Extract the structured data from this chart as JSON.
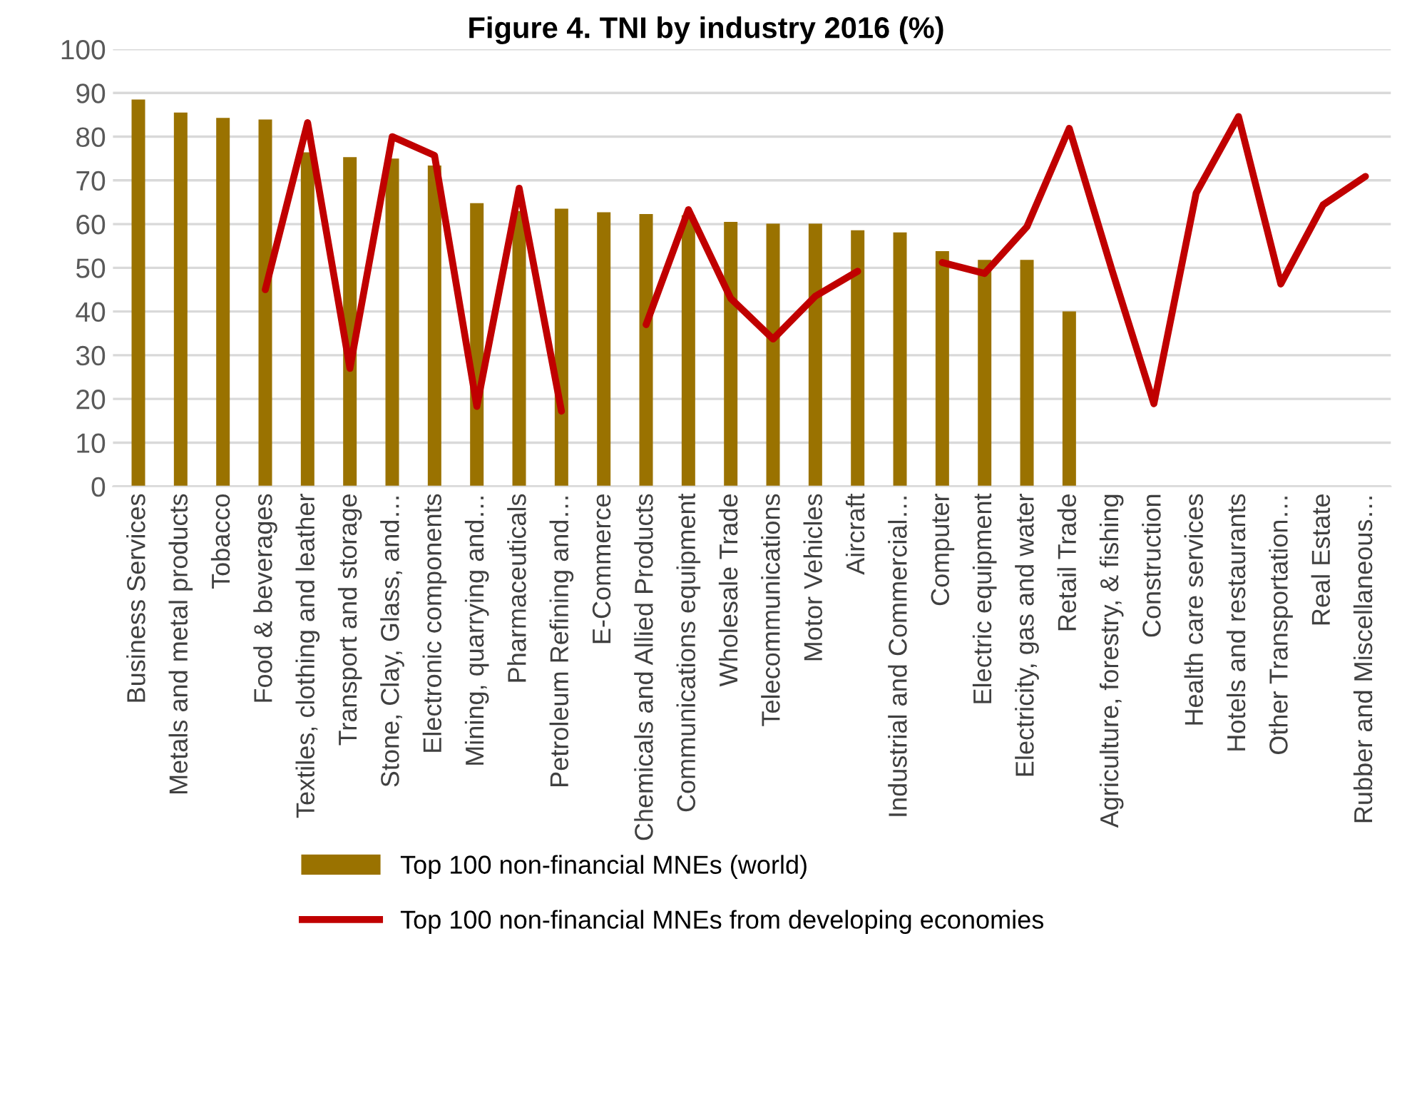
{
  "chart_data": {
    "type": "bar",
    "title": "Figure 4. TNI by industry 2016 (%)",
    "categories": [
      "Business Services",
      "Metals and metal products",
      "Tobacco",
      "Food & beverages",
      "Textiles, clothing and leather",
      "Transport and storage",
      "Stone, Clay, Glass, and…",
      "Electronic components",
      "Mining, quarrying and…",
      "Pharmaceuticals",
      "Petroleum Refining and…",
      "E-Commerce",
      "Chemicals and Allied Products",
      "Communications equipment",
      "Wholesale Trade",
      "Telecommunications",
      "Motor Vehicles",
      "Aircraft",
      "Industrial and Commercial…",
      "Computer",
      "Electric equipment",
      "Electricity, gas and water",
      "Retail Trade",
      "Agriculture, forestry, & fishing",
      "Construction",
      "Health care services",
      "Hotels and restaurants",
      "Other Transportation…",
      "Real Estate",
      "Rubber and Miscellaneous…"
    ],
    "series": [
      {
        "name": "Top 100 non-financial MNEs (world)",
        "color": "#9a7200",
        "values": [
          88.5,
          85.5,
          84.3,
          83.9,
          76.4,
          75.3,
          75,
          73.4,
          64.8,
          63,
          63.5,
          62.7,
          62.3,
          62,
          60.5,
          60.1,
          60.1,
          58.6,
          58.1,
          53.8,
          51.8,
          51.8,
          40,
          null,
          null,
          null,
          null,
          null,
          null,
          null
        ]
      },
      {
        "name": "Top 100 non-financial MNEs from developing economies",
        "type": "line",
        "color": "#c00000",
        "values": [
          null,
          null,
          null,
          45,
          83.2,
          27,
          80,
          75.7,
          18.3,
          68.2,
          17.2,
          null,
          37,
          63.3,
          43,
          33.7,
          43.5,
          49.2,
          null,
          51.2,
          48.7,
          59.4,
          81.9,
          49.8,
          18.9,
          67.1,
          84.6,
          46.3,
          64.4,
          70.9
        ]
      }
    ],
    "ylim": [
      0,
      100
    ],
    "yticks": [
      0,
      10,
      20,
      30,
      40,
      50,
      60,
      70,
      80,
      90,
      100
    ],
    "grid": "y",
    "legend": "bottom",
    "line_style": "solid",
    "marker": "none"
  }
}
